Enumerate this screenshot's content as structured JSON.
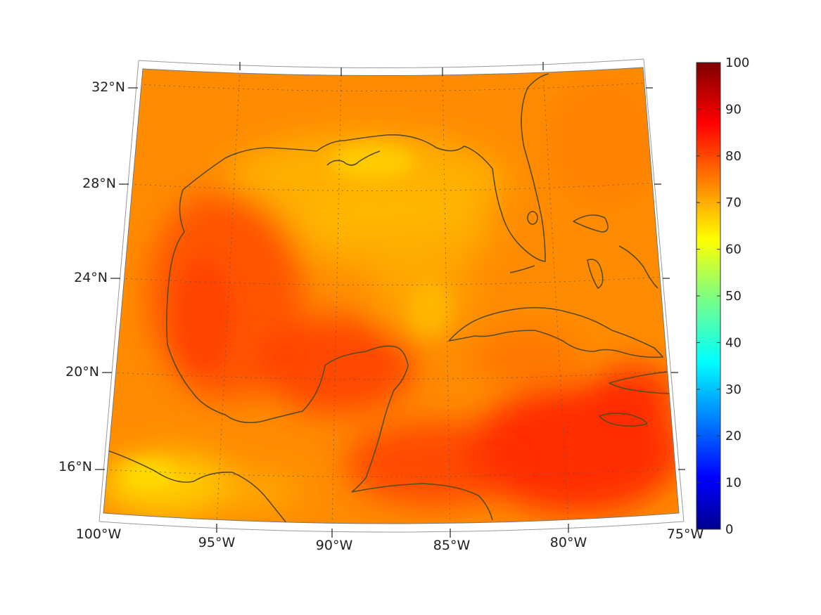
{
  "map": {
    "projection": "conic",
    "variable_shown_as_color": "relative humidity style field (0-100)",
    "lon_labels": [
      "100°W",
      "95°W",
      "90°W",
      "85°W",
      "80°W",
      "75°W"
    ],
    "lat_labels": [
      "32°N",
      "28°N",
      "24°N",
      "20°N",
      "16°N"
    ],
    "coastline_color": "#5a4a1e"
  },
  "colorbar": {
    "ticks": [
      "100",
      "90",
      "80",
      "70",
      "60",
      "50",
      "40",
      "30",
      "20",
      "10",
      "0"
    ],
    "min": 0,
    "max": 100,
    "colormap": "jet"
  }
}
